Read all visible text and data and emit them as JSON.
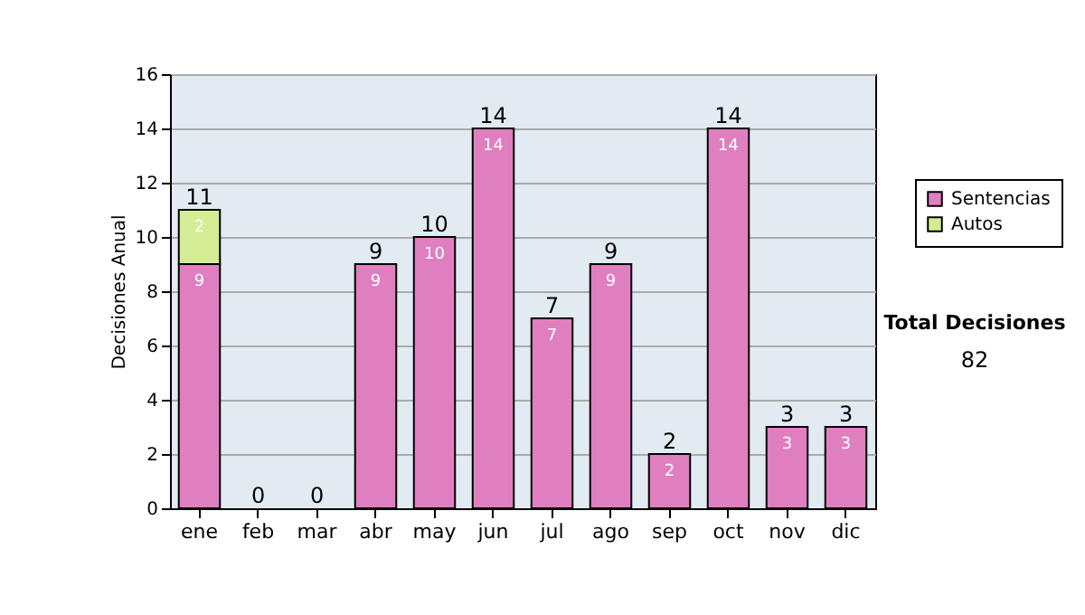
{
  "chart_data": {
    "type": "bar",
    "stacked": true,
    "ylabel": "Decisiones Anual",
    "categories": [
      "ene",
      "feb",
      "mar",
      "abr",
      "may",
      "jun",
      "jul",
      "ago",
      "sep",
      "oct",
      "nov",
      "dic"
    ],
    "series": [
      {
        "name": "Sentencias",
        "color": "#e07fc0",
        "values": [
          9,
          0,
          0,
          9,
          10,
          14,
          7,
          9,
          2,
          14,
          3,
          3
        ],
        "value_labels": [
          "9",
          null,
          null,
          "9",
          "10",
          "14",
          "7",
          "9",
          "2",
          "14",
          "3",
          "3"
        ]
      },
      {
        "name": "Autos",
        "color": "#d4ec94",
        "values": [
          2,
          null,
          null,
          null,
          null,
          null,
          null,
          null,
          null,
          null,
          null,
          null
        ],
        "value_labels": [
          "2",
          null,
          null,
          null,
          null,
          null,
          null,
          null,
          null,
          null,
          null,
          null
        ]
      }
    ],
    "totals": [
      "11",
      "0",
      "0",
      "9",
      "10",
      "14",
      "7",
      "9",
      "2",
      "14",
      "3",
      "3"
    ],
    "ylim": [
      0,
      16
    ],
    "yticks": [
      0,
      2,
      4,
      6,
      8,
      10,
      12,
      14,
      16
    ],
    "grid": "y",
    "legend": "right",
    "annotations": [
      "Total Decisiones",
      "82"
    ]
  }
}
